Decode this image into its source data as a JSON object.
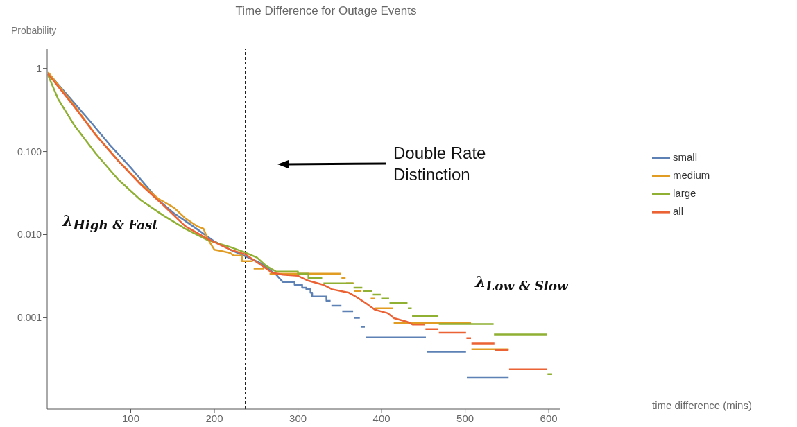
{
  "chart_data": {
    "type": "line",
    "title": "Time Difference for Outage Events",
    "ylabel": "Probability",
    "log": "y",
    "xlim": [
      0,
      614
    ],
    "xticks": [
      100,
      200,
      300,
      400,
      500,
      600
    ],
    "ylim": [
      8e-05,
      1.7
    ],
    "yticks": [
      1,
      {
        "value": 0.1,
        "label": "0.100"
      },
      {
        "value": 0.01,
        "label": "0.010"
      },
      {
        "value": 0.001,
        "label": "0.001"
      }
    ],
    "grid": false,
    "legend": "right",
    "marker": "none",
    "ref_lines": [
      {
        "axis": "x",
        "value": 237,
        "color": "#000000",
        "line_style": "dashed"
      }
    ],
    "annotations": [
      "Double Rate Distinction",
      "λ$_{High & Fast}$",
      "λ$_{Low & Slow}$",
      "time difference (mins)"
    ],
    "series": [
      {
        "name": "small",
        "color": "#5e81b5",
        "x": [
          1,
          15,
          30,
          50,
          75,
          100,
          120,
          133,
          152,
          175,
          200,
          220,
          237,
          250,
          256,
          274,
          281.8,
          296,
          296,
          305,
          305,
          310,
          310,
          315,
          315,
          317,
          317,
          334,
          334.1,
          339,
          339.5,
          340,
          352,
          352.5,
          353,
          366,
          366.5,
          367,
          374,
          374.5,
          375,
          380,
          380.5,
          381,
          453,
          453.5,
          454,
          501,
          501.5,
          502,
          552
        ],
        "values": [
          0.89,
          0.61,
          0.41,
          0.24,
          0.12,
          0.064,
          0.037,
          0.026,
          0.018,
          0.0125,
          0.0083,
          0.0065,
          0.0055,
          0.0048,
          0.0045,
          0.0033,
          0.0027,
          0.0027,
          0.0025,
          0.0025,
          0.0023,
          0.0023,
          0.0022,
          0.0022,
          0.002,
          0.002,
          0.0018,
          0.0018,
          0.0016,
          0.0016,
          null,
          0.0014,
          0.0014,
          null,
          0.0012,
          0.0012,
          null,
          0.001,
          0.001,
          null,
          0.00078,
          0.00078,
          null,
          0.00058,
          0.00058,
          null,
          0.00039,
          0.00039,
          null,
          0.00019,
          0.00019
        ]
      },
      {
        "name": "medium",
        "color": "#e19c24",
        "x": [
          1,
          32,
          58,
          85,
          112,
          133,
          139,
          152,
          165,
          179,
          187,
          192,
          200,
          210,
          219,
          223,
          233,
          233,
          246,
          246.5,
          247,
          259,
          262,
          266,
          351,
          351.5,
          352,
          357,
          357.2,
          357.5,
          367,
          367.2,
          367.5,
          376,
          380,
          387,
          392,
          392.2,
          392.5,
          414,
          414.2,
          414.5,
          507,
          507.2,
          507.5,
          552
        ],
        "values": [
          0.9,
          0.36,
          0.16,
          0.078,
          0.041,
          0.027,
          0.025,
          0.021,
          0.0158,
          0.0127,
          0.0118,
          0.0089,
          0.0066,
          0.0063,
          0.006,
          0.0056,
          0.0056,
          0.0048,
          0.0048,
          null,
          0.0039,
          0.0039,
          null,
          0.0034,
          0.0034,
          null,
          0.003,
          0.003,
          null,
          0.0026,
          0.0026,
          null,
          0.0021,
          0.0021,
          null,
          0.0017,
          0.0017,
          null,
          0.0013,
          0.0013,
          null,
          0.00086,
          0.00086,
          null,
          0.00042,
          0.00042
        ]
      },
      {
        "name": "large",
        "color": "#8fb032",
        "x": [
          1,
          13,
          32,
          58,
          85,
          112,
          139,
          165,
          192,
          219,
          235,
          251,
          262,
          274,
          300,
          300,
          312.5,
          312.5,
          329,
          330,
          330.5,
          366,
          366.2,
          366.5,
          377,
          377.2,
          377.5,
          389,
          389.2,
          389.5,
          399,
          399.2,
          399.5,
          409,
          409.2,
          409.5,
          431,
          431.2,
          431.5,
          436,
          436.2,
          436.5,
          468,
          468.2,
          468.5,
          534,
          534.2,
          534.5,
          598,
          598.2,
          598.5,
          604
        ],
        "values": [
          0.83,
          0.43,
          0.21,
          0.095,
          0.046,
          0.026,
          0.017,
          0.0118,
          0.0086,
          0.0071,
          0.0062,
          0.0053,
          0.0042,
          0.0036,
          0.0036,
          0.0034,
          0.0034,
          0.003,
          0.003,
          null,
          0.0026,
          0.0026,
          null,
          0.0023,
          0.0023,
          null,
          0.0021,
          0.0021,
          null,
          0.0019,
          0.0019,
          null,
          0.0017,
          0.0017,
          null,
          0.0015,
          0.0015,
          null,
          0.0013,
          0.0013,
          null,
          0.00105,
          0.00105,
          null,
          0.00084,
          0.00084,
          null,
          0.00063,
          0.00063,
          null,
          0.00021,
          0.00021
        ]
      },
      {
        "name": "all",
        "color": "#eb6235",
        "x": [
          1,
          32,
          58,
          85,
          112,
          139,
          165,
          192,
          219,
          237,
          249,
          269,
          282,
          300,
          312,
          330,
          341,
          361,
          369,
          382,
          392,
          407,
          415,
          430,
          437,
          452,
          452.2,
          452.5,
          468,
          468.2,
          468.5,
          501,
          501.2,
          501.5,
          507,
          507.2,
          507.5,
          535,
          535.2,
          535.5,
          552,
          552.2,
          552.5,
          598
        ],
        "values": [
          0.86,
          0.35,
          0.158,
          0.077,
          0.04,
          0.0226,
          0.0127,
          0.0089,
          0.0066,
          0.0058,
          0.0048,
          0.0035,
          0.0033,
          0.0032,
          0.0028,
          0.0025,
          0.0022,
          0.002,
          0.0018,
          0.00148,
          0.00125,
          0.00114,
          0.00099,
          0.0009,
          0.00083,
          0.00083,
          null,
          0.00073,
          0.00073,
          null,
          0.00066,
          0.00066,
          null,
          0.00057,
          0.00057,
          null,
          0.00049,
          0.00049,
          null,
          0.00041,
          0.00041,
          null,
          0.00024,
          0.00024
        ]
      }
    ]
  }
}
